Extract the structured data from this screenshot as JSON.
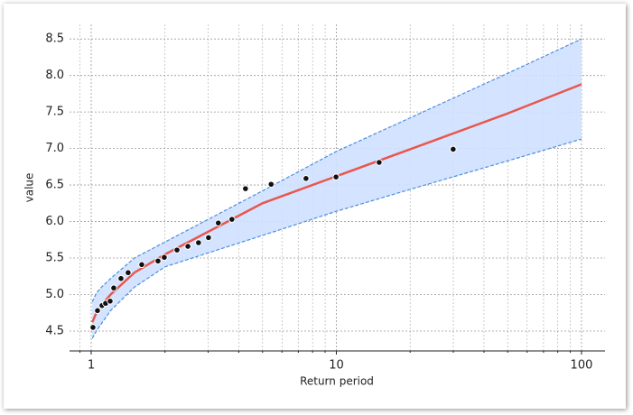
{
  "chart_data": {
    "type": "return-period",
    "xlabel": "Return period",
    "ylabel": "value",
    "xscale": "log",
    "xlim": [
      0.816,
      124.7
    ],
    "ylim": [
      4.228,
      8.7
    ],
    "xticks": [
      1,
      10,
      100
    ],
    "minor_xticks": [
      0.9,
      2,
      3,
      4,
      5,
      6,
      7,
      8,
      9,
      20,
      30,
      40,
      50,
      60,
      70,
      80,
      90
    ],
    "yticks": [
      4.5,
      {
        "value": 5,
        "label": "5.0"
      },
      5.5,
      {
        "value": 6,
        "label": "6.0"
      },
      6.5,
      {
        "value": 7,
        "label": "7.0"
      },
      7.5,
      {
        "value": 8,
        "label": "8.0"
      },
      8.5
    ],
    "grid": true,
    "x": [
      1.01,
      1.05,
      1.1,
      1.2,
      1.5,
      2,
      3,
      5,
      10,
      20,
      50,
      100
    ],
    "fit": {
      "color": "#e8574d",
      "values": [
        4.62,
        4.75,
        4.85,
        5.0,
        5.3,
        5.55,
        5.86,
        6.25,
        6.62,
        6.99,
        7.48,
        7.88
      ]
    },
    "upper": [
      4.9,
      5.02,
      5.1,
      5.22,
      5.5,
      5.72,
      6.03,
      6.42,
      6.96,
      7.42,
      8.03,
      8.5
    ],
    "lower": [
      4.4,
      4.5,
      4.6,
      4.78,
      5.1,
      5.38,
      5.57,
      5.81,
      6.14,
      6.44,
      6.83,
      7.13
    ],
    "band_color": "#cfe0ff",
    "band_edge_color": "#4c8fe0",
    "points": {
      "color": "#111111",
      "x": [
        1.017,
        1.061,
        1.107,
        1.145,
        1.195,
        1.236,
        1.323,
        1.415,
        1.608,
        1.873,
        1.987,
        2.239,
        2.48,
        2.74,
        3.01,
        3.3,
        3.75,
        4.26,
        5.42,
        7.52,
        9.97,
        14.95,
        29.96
      ],
      "y": [
        4.55,
        4.78,
        4.85,
        4.88,
        4.91,
        5.09,
        5.22,
        5.3,
        5.41,
        5.46,
        5.51,
        5.61,
        5.66,
        5.71,
        5.78,
        5.98,
        6.03,
        6.45,
        6.51,
        6.59,
        6.61,
        6.81,
        6.99
      ]
    }
  }
}
